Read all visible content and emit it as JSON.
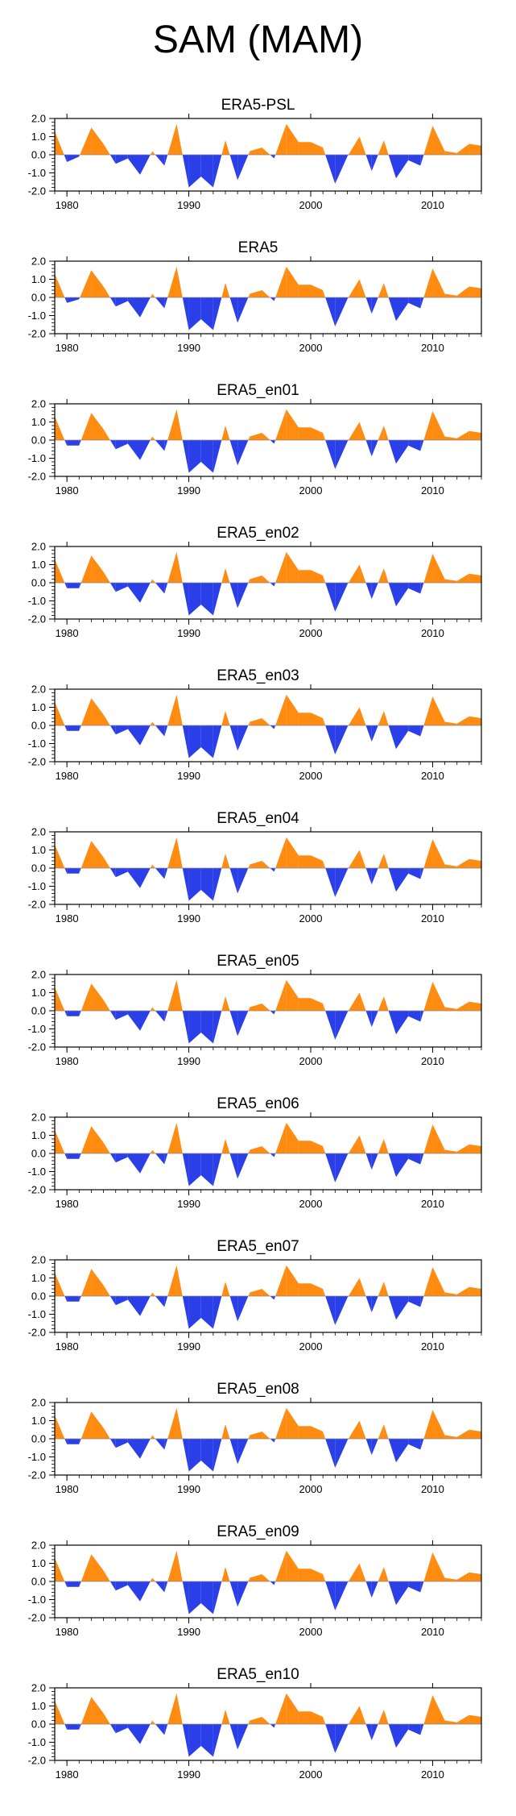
{
  "title": "SAM (MAM)",
  "colors": {
    "positive": "#FF8C11",
    "negative": "#2B3FE8",
    "axis": "#000000"
  },
  "chart_data": [
    {
      "type": "area",
      "title": "ERA5-PSL",
      "xlim": [
        1979,
        2014
      ],
      "ylim": [
        -2.0,
        2.0
      ],
      "x": [
        1979,
        1980,
        1981,
        1982,
        1983,
        1984,
        1985,
        1986,
        1987,
        1988,
        1989,
        1990,
        1991,
        1992,
        1993,
        1994,
        1995,
        1996,
        1997,
        1998,
        1999,
        2000,
        2001,
        2002,
        2003,
        2004,
        2005,
        2006,
        2007,
        2008,
        2009,
        2010,
        2011,
        2012,
        2013,
        2014
      ],
      "values": [
        1.3,
        -0.4,
        -0.1,
        1.5,
        0.6,
        -0.5,
        -0.2,
        -1.1,
        0.2,
        -0.6,
        1.7,
        -1.8,
        -1.2,
        -1.8,
        0.8,
        -1.4,
        0.2,
        0.4,
        -0.2,
        1.7,
        0.7,
        0.7,
        0.4,
        -1.6,
        -0.1,
        1.0,
        -0.9,
        0.8,
        -1.3,
        -0.3,
        -0.6,
        1.6,
        0.2,
        0.1,
        0.6,
        0.5
      ],
      "xticks": [
        1980,
        1990,
        2000,
        2010
      ],
      "xticklabels": [
        "1980",
        "1990",
        "2000",
        "2010"
      ],
      "yticks": [
        2.0,
        1.0,
        0.0,
        -1.0,
        -2.0
      ],
      "yticklabels": [
        "2.0",
        "1.0",
        "0.0",
        "-1.0",
        "-2.0"
      ]
    },
    {
      "type": "area",
      "title": "ERA5",
      "xlim": [
        1979,
        2014
      ],
      "ylim": [
        -2.0,
        2.0
      ],
      "x": [
        1979,
        1980,
        1981,
        1982,
        1983,
        1984,
        1985,
        1986,
        1987,
        1988,
        1989,
        1990,
        1991,
        1992,
        1993,
        1994,
        1995,
        1996,
        1997,
        1998,
        1999,
        2000,
        2001,
        2002,
        2003,
        2004,
        2005,
        2006,
        2007,
        2008,
        2009,
        2010,
        2011,
        2012,
        2013,
        2014
      ],
      "values": [
        1.3,
        -0.3,
        -0.1,
        1.5,
        0.6,
        -0.5,
        -0.2,
        -1.1,
        0.2,
        -0.6,
        1.7,
        -1.8,
        -1.2,
        -1.8,
        0.8,
        -1.4,
        0.2,
        0.4,
        -0.2,
        1.7,
        0.7,
        0.7,
        0.4,
        -1.6,
        -0.1,
        1.0,
        -0.9,
        0.8,
        -1.3,
        -0.3,
        -0.6,
        1.6,
        0.2,
        0.1,
        0.6,
        0.5
      ],
      "xticks": [
        1980,
        1990,
        2000,
        2010
      ],
      "xticklabels": [
        "1980",
        "1990",
        "2000",
        "2010"
      ],
      "yticks": [
        2.0,
        1.0,
        0.0,
        -1.0,
        -2.0
      ],
      "yticklabels": [
        "2.0",
        "1.0",
        "0.0",
        "-1.0",
        "-2.0"
      ]
    },
    {
      "type": "area",
      "title": "ERA5_en01",
      "xlim": [
        1979,
        2014
      ],
      "ylim": [
        -2.0,
        2.0
      ],
      "x": [
        1979,
        1980,
        1981,
        1982,
        1983,
        1984,
        1985,
        1986,
        1987,
        1988,
        1989,
        1990,
        1991,
        1992,
        1993,
        1994,
        1995,
        1996,
        1997,
        1998,
        1999,
        2000,
        2001,
        2002,
        2003,
        2004,
        2005,
        2006,
        2007,
        2008,
        2009,
        2010,
        2011,
        2012,
        2013,
        2014
      ],
      "values": [
        1.3,
        -0.3,
        -0.3,
        1.5,
        0.6,
        -0.5,
        -0.2,
        -1.1,
        0.2,
        -0.6,
        1.7,
        -1.8,
        -1.2,
        -1.8,
        0.8,
        -1.4,
        0.2,
        0.4,
        -0.2,
        1.7,
        0.7,
        0.7,
        0.4,
        -1.6,
        -0.1,
        1.0,
        -0.9,
        0.8,
        -1.3,
        -0.3,
        -0.6,
        1.6,
        0.2,
        0.1,
        0.5,
        0.4
      ],
      "xticks": [
        1980,
        1990,
        2000,
        2010
      ],
      "xticklabels": [
        "1980",
        "1990",
        "2000",
        "2010"
      ],
      "yticks": [
        2.0,
        1.0,
        0.0,
        -1.0,
        -2.0
      ],
      "yticklabels": [
        "2.0",
        "1.0",
        "0.0",
        "-1.0",
        "-2.0"
      ]
    },
    {
      "type": "area",
      "title": "ERA5_en02",
      "xlim": [
        1979,
        2014
      ],
      "ylim": [
        -2.0,
        2.0
      ],
      "x": [
        1979,
        1980,
        1981,
        1982,
        1983,
        1984,
        1985,
        1986,
        1987,
        1988,
        1989,
        1990,
        1991,
        1992,
        1993,
        1994,
        1995,
        1996,
        1997,
        1998,
        1999,
        2000,
        2001,
        2002,
        2003,
        2004,
        2005,
        2006,
        2007,
        2008,
        2009,
        2010,
        2011,
        2012,
        2013,
        2014
      ],
      "values": [
        1.3,
        -0.3,
        -0.3,
        1.5,
        0.6,
        -0.5,
        -0.2,
        -1.1,
        0.2,
        -0.6,
        1.7,
        -1.8,
        -1.2,
        -1.8,
        0.8,
        -1.4,
        0.2,
        0.4,
        -0.2,
        1.7,
        0.7,
        0.7,
        0.4,
        -1.6,
        -0.1,
        1.0,
        -0.9,
        0.8,
        -1.3,
        -0.3,
        -0.6,
        1.6,
        0.2,
        0.1,
        0.5,
        0.4
      ],
      "xticks": [
        1980,
        1990,
        2000,
        2010
      ],
      "xticklabels": [
        "1980",
        "1990",
        "2000",
        "2010"
      ],
      "yticks": [
        2.0,
        1.0,
        0.0,
        -1.0,
        -2.0
      ],
      "yticklabels": [
        "2.0",
        "1.0",
        "0.0",
        "-1.0",
        "-2.0"
      ]
    },
    {
      "type": "area",
      "title": "ERA5_en03",
      "xlim": [
        1979,
        2014
      ],
      "ylim": [
        -2.0,
        2.0
      ],
      "x": [
        1979,
        1980,
        1981,
        1982,
        1983,
        1984,
        1985,
        1986,
        1987,
        1988,
        1989,
        1990,
        1991,
        1992,
        1993,
        1994,
        1995,
        1996,
        1997,
        1998,
        1999,
        2000,
        2001,
        2002,
        2003,
        2004,
        2005,
        2006,
        2007,
        2008,
        2009,
        2010,
        2011,
        2012,
        2013,
        2014
      ],
      "values": [
        1.3,
        -0.3,
        -0.3,
        1.5,
        0.6,
        -0.5,
        -0.2,
        -1.1,
        0.2,
        -0.6,
        1.7,
        -1.8,
        -1.2,
        -1.8,
        0.8,
        -1.4,
        0.2,
        0.4,
        -0.2,
        1.7,
        0.7,
        0.7,
        0.4,
        -1.6,
        -0.1,
        1.0,
        -0.9,
        0.8,
        -1.3,
        -0.3,
        -0.6,
        1.6,
        0.2,
        0.1,
        0.5,
        0.4
      ],
      "xticks": [
        1980,
        1990,
        2000,
        2010
      ],
      "xticklabels": [
        "1980",
        "1990",
        "2000",
        "2010"
      ],
      "yticks": [
        2.0,
        1.0,
        0.0,
        -1.0,
        -2.0
      ],
      "yticklabels": [
        "2.0",
        "1.0",
        "0.0",
        "-1.0",
        "-2.0"
      ]
    },
    {
      "type": "area",
      "title": "ERA5_en04",
      "xlim": [
        1979,
        2014
      ],
      "ylim": [
        -2.0,
        2.0
      ],
      "x": [
        1979,
        1980,
        1981,
        1982,
        1983,
        1984,
        1985,
        1986,
        1987,
        1988,
        1989,
        1990,
        1991,
        1992,
        1993,
        1994,
        1995,
        1996,
        1997,
        1998,
        1999,
        2000,
        2001,
        2002,
        2003,
        2004,
        2005,
        2006,
        2007,
        2008,
        2009,
        2010,
        2011,
        2012,
        2013,
        2014
      ],
      "values": [
        1.3,
        -0.3,
        -0.3,
        1.5,
        0.6,
        -0.5,
        -0.2,
        -1.1,
        0.2,
        -0.6,
        1.7,
        -1.8,
        -1.2,
        -1.8,
        0.8,
        -1.4,
        0.2,
        0.4,
        -0.2,
        1.7,
        0.7,
        0.7,
        0.4,
        -1.6,
        -0.1,
        1.0,
        -0.9,
        0.8,
        -1.3,
        -0.3,
        -0.6,
        1.6,
        0.2,
        0.1,
        0.5,
        0.4
      ],
      "xticks": [
        1980,
        1990,
        2000,
        2010
      ],
      "xticklabels": [
        "1980",
        "1990",
        "2000",
        "2010"
      ],
      "yticks": [
        2.0,
        1.0,
        0.0,
        -1.0,
        -2.0
      ],
      "yticklabels": [
        "2.0",
        "1.0",
        "0.0",
        "-1.0",
        "-2.0"
      ]
    },
    {
      "type": "area",
      "title": "ERA5_en05",
      "xlim": [
        1979,
        2014
      ],
      "ylim": [
        -2.0,
        2.0
      ],
      "x": [
        1979,
        1980,
        1981,
        1982,
        1983,
        1984,
        1985,
        1986,
        1987,
        1988,
        1989,
        1990,
        1991,
        1992,
        1993,
        1994,
        1995,
        1996,
        1997,
        1998,
        1999,
        2000,
        2001,
        2002,
        2003,
        2004,
        2005,
        2006,
        2007,
        2008,
        2009,
        2010,
        2011,
        2012,
        2013,
        2014
      ],
      "values": [
        1.3,
        -0.3,
        -0.3,
        1.5,
        0.6,
        -0.5,
        -0.2,
        -1.1,
        0.2,
        -0.6,
        1.7,
        -1.8,
        -1.2,
        -1.8,
        0.8,
        -1.4,
        0.2,
        0.4,
        -0.2,
        1.7,
        0.7,
        0.7,
        0.4,
        -1.6,
        -0.1,
        1.0,
        -0.9,
        0.8,
        -1.3,
        -0.3,
        -0.6,
        1.6,
        0.2,
        0.1,
        0.5,
        0.4
      ],
      "xticks": [
        1980,
        1990,
        2000,
        2010
      ],
      "xticklabels": [
        "1980",
        "1990",
        "2000",
        "2010"
      ],
      "yticks": [
        2.0,
        1.0,
        0.0,
        -1.0,
        -2.0
      ],
      "yticklabels": [
        "2.0",
        "1.0",
        "0.0",
        "-1.0",
        "-2.0"
      ]
    },
    {
      "type": "area",
      "title": "ERA5_en06",
      "xlim": [
        1979,
        2014
      ],
      "ylim": [
        -2.0,
        2.0
      ],
      "x": [
        1979,
        1980,
        1981,
        1982,
        1983,
        1984,
        1985,
        1986,
        1987,
        1988,
        1989,
        1990,
        1991,
        1992,
        1993,
        1994,
        1995,
        1996,
        1997,
        1998,
        1999,
        2000,
        2001,
        2002,
        2003,
        2004,
        2005,
        2006,
        2007,
        2008,
        2009,
        2010,
        2011,
        2012,
        2013,
        2014
      ],
      "values": [
        1.3,
        -0.3,
        -0.3,
        1.5,
        0.6,
        -0.5,
        -0.2,
        -1.1,
        0.2,
        -0.6,
        1.7,
        -1.8,
        -1.2,
        -1.8,
        0.8,
        -1.4,
        0.2,
        0.4,
        -0.2,
        1.7,
        0.7,
        0.7,
        0.4,
        -1.6,
        -0.1,
        1.0,
        -0.9,
        0.8,
        -1.3,
        -0.3,
        -0.6,
        1.6,
        0.2,
        0.1,
        0.5,
        0.4
      ],
      "xticks": [
        1980,
        1990,
        2000,
        2010
      ],
      "xticklabels": [
        "1980",
        "1990",
        "2000",
        "2010"
      ],
      "yticks": [
        2.0,
        1.0,
        0.0,
        -1.0,
        -2.0
      ],
      "yticklabels": [
        "2.0",
        "1.0",
        "0.0",
        "-1.0",
        "-2.0"
      ]
    },
    {
      "type": "area",
      "title": "ERA5_en07",
      "xlim": [
        1979,
        2014
      ],
      "ylim": [
        -2.0,
        2.0
      ],
      "x": [
        1979,
        1980,
        1981,
        1982,
        1983,
        1984,
        1985,
        1986,
        1987,
        1988,
        1989,
        1990,
        1991,
        1992,
        1993,
        1994,
        1995,
        1996,
        1997,
        1998,
        1999,
        2000,
        2001,
        2002,
        2003,
        2004,
        2005,
        2006,
        2007,
        2008,
        2009,
        2010,
        2011,
        2012,
        2013,
        2014
      ],
      "values": [
        1.3,
        -0.3,
        -0.3,
        1.5,
        0.6,
        -0.5,
        -0.2,
        -1.1,
        0.2,
        -0.6,
        1.7,
        -1.8,
        -1.2,
        -1.8,
        0.8,
        -1.4,
        0.2,
        0.4,
        -0.2,
        1.7,
        0.7,
        0.7,
        0.4,
        -1.6,
        -0.1,
        1.0,
        -0.9,
        0.8,
        -1.3,
        -0.3,
        -0.6,
        1.6,
        0.2,
        0.1,
        0.5,
        0.4
      ],
      "xticks": [
        1980,
        1990,
        2000,
        2010
      ],
      "xticklabels": [
        "1980",
        "1990",
        "2000",
        "2010"
      ],
      "yticks": [
        2.0,
        1.0,
        0.0,
        -1.0,
        -2.0
      ],
      "yticklabels": [
        "2.0",
        "1.0",
        "0.0",
        "-1.0",
        "-2.0"
      ]
    },
    {
      "type": "area",
      "title": "ERA5_en08",
      "xlim": [
        1979,
        2014
      ],
      "ylim": [
        -2.0,
        2.0
      ],
      "x": [
        1979,
        1980,
        1981,
        1982,
        1983,
        1984,
        1985,
        1986,
        1987,
        1988,
        1989,
        1990,
        1991,
        1992,
        1993,
        1994,
        1995,
        1996,
        1997,
        1998,
        1999,
        2000,
        2001,
        2002,
        2003,
        2004,
        2005,
        2006,
        2007,
        2008,
        2009,
        2010,
        2011,
        2012,
        2013,
        2014
      ],
      "values": [
        1.3,
        -0.3,
        -0.3,
        1.5,
        0.6,
        -0.5,
        -0.2,
        -1.1,
        0.2,
        -0.6,
        1.7,
        -1.8,
        -1.2,
        -1.8,
        0.8,
        -1.4,
        0.2,
        0.4,
        -0.2,
        1.7,
        0.7,
        0.7,
        0.4,
        -1.6,
        -0.1,
        1.0,
        -0.9,
        0.8,
        -1.3,
        -0.3,
        -0.6,
        1.6,
        0.2,
        0.1,
        0.5,
        0.4
      ],
      "xticks": [
        1980,
        1990,
        2000,
        2010
      ],
      "xticklabels": [
        "1980",
        "1990",
        "2000",
        "2010"
      ],
      "yticks": [
        2.0,
        1.0,
        0.0,
        -1.0,
        -2.0
      ],
      "yticklabels": [
        "2.0",
        "1.0",
        "0.0",
        "-1.0",
        "-2.0"
      ]
    },
    {
      "type": "area",
      "title": "ERA5_en09",
      "xlim": [
        1979,
        2014
      ],
      "ylim": [
        -2.0,
        2.0
      ],
      "x": [
        1979,
        1980,
        1981,
        1982,
        1983,
        1984,
        1985,
        1986,
        1987,
        1988,
        1989,
        1990,
        1991,
        1992,
        1993,
        1994,
        1995,
        1996,
        1997,
        1998,
        1999,
        2000,
        2001,
        2002,
        2003,
        2004,
        2005,
        2006,
        2007,
        2008,
        2009,
        2010,
        2011,
        2012,
        2013,
        2014
      ],
      "values": [
        1.3,
        -0.3,
        -0.3,
        1.5,
        0.6,
        -0.5,
        -0.2,
        -1.1,
        0.2,
        -0.6,
        1.7,
        -1.8,
        -1.2,
        -1.8,
        0.8,
        -1.4,
        0.2,
        0.4,
        -0.2,
        1.7,
        0.7,
        0.7,
        0.4,
        -1.6,
        -0.1,
        1.0,
        -0.9,
        0.8,
        -1.3,
        -0.3,
        -0.6,
        1.6,
        0.2,
        0.1,
        0.5,
        0.4
      ],
      "xticks": [
        1980,
        1990,
        2000,
        2010
      ],
      "xticklabels": [
        "1980",
        "1990",
        "2000",
        "2010"
      ],
      "yticks": [
        2.0,
        1.0,
        0.0,
        -1.0,
        -2.0
      ],
      "yticklabels": [
        "2.0",
        "1.0",
        "0.0",
        "-1.0",
        "-2.0"
      ]
    },
    {
      "type": "area",
      "title": "ERA5_en10",
      "xlim": [
        1979,
        2014
      ],
      "ylim": [
        -2.0,
        2.0
      ],
      "x": [
        1979,
        1980,
        1981,
        1982,
        1983,
        1984,
        1985,
        1986,
        1987,
        1988,
        1989,
        1990,
        1991,
        1992,
        1993,
        1994,
        1995,
        1996,
        1997,
        1998,
        1999,
        2000,
        2001,
        2002,
        2003,
        2004,
        2005,
        2006,
        2007,
        2008,
        2009,
        2010,
        2011,
        2012,
        2013,
        2014
      ],
      "values": [
        1.3,
        -0.3,
        -0.3,
        1.5,
        0.6,
        -0.5,
        -0.2,
        -1.1,
        0.2,
        -0.6,
        1.7,
        -1.8,
        -1.2,
        -1.8,
        0.8,
        -1.4,
        0.2,
        0.4,
        -0.2,
        1.7,
        0.7,
        0.7,
        0.4,
        -1.6,
        -0.1,
        1.0,
        -0.9,
        0.8,
        -1.3,
        -0.3,
        -0.6,
        1.6,
        0.2,
        0.1,
        0.5,
        0.4
      ],
      "xticks": [
        1980,
        1990,
        2000,
        2010
      ],
      "xticklabels": [
        "1980",
        "1990",
        "2000",
        "2010"
      ],
      "yticks": [
        2.0,
        1.0,
        0.0,
        -1.0,
        -2.0
      ],
      "yticklabels": [
        "2.0",
        "1.0",
        "0.0",
        "-1.0",
        "-2.0"
      ]
    }
  ]
}
